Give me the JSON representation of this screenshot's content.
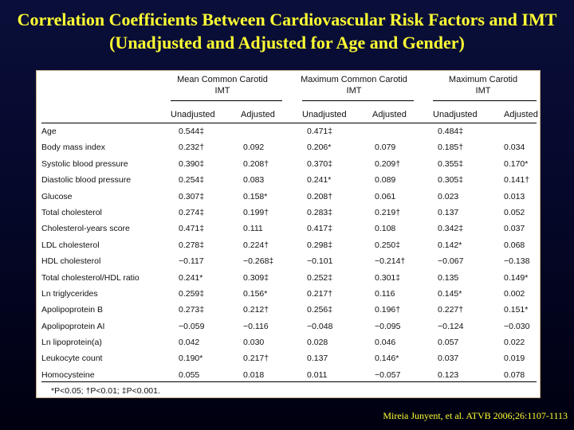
{
  "title": "Correlation Coefficients Between Cardiovascular Risk Factors and IMT (Unadjusted and Adjusted for Age and Gender)",
  "table": {
    "groups": [
      "Mean Common Carotid\nIMT",
      "Maximum Common Carotid\nIMT",
      "Maximum Carotid\nIMT"
    ],
    "subheads": [
      "Unadjusted",
      "Adjusted",
      "Unadjusted",
      "Adjusted",
      "Unadjusted",
      "Adjusted"
    ],
    "rows": [
      {
        "label": "Age",
        "values": [
          "0.544‡",
          "",
          "0.471‡",
          "",
          "0.484‡",
          ""
        ]
      },
      {
        "label": "Body mass index",
        "values": [
          "0.232†",
          "0.092",
          "0.206*",
          "0.079",
          "0.185†",
          "0.034"
        ]
      },
      {
        "label": "Systolic blood pressure",
        "values": [
          "0.390‡",
          "0.208†",
          "0.370‡",
          "0.209†",
          "0.355‡",
          "0.170*"
        ]
      },
      {
        "label": "Diastolic blood pressure",
        "values": [
          "0.254‡",
          "0.083",
          "0.241*",
          "0.089",
          "0.305‡",
          "0.141†"
        ]
      },
      {
        "label": "Glucose",
        "values": [
          "0.307‡",
          "0.158*",
          "0.208†",
          "0.061",
          "0.023",
          "0.013"
        ]
      },
      {
        "label": "Total cholesterol",
        "values": [
          "0.274‡",
          "0.199†",
          "0.283‡",
          "0.219†",
          "0.137",
          "0.052"
        ]
      },
      {
        "label": "Cholesterol-years score",
        "values": [
          "0.471‡",
          "0.111",
          "0.417‡",
          "0.108",
          "0.342‡",
          "0.037"
        ]
      },
      {
        "label": "LDL cholesterol",
        "values": [
          "0.278‡",
          "0.224†",
          "0.298‡",
          "0.250‡",
          "0.142*",
          "0.068"
        ]
      },
      {
        "label": "HDL cholesterol",
        "values": [
          "−0.117",
          "−0.268‡",
          "−0.101",
          "−0.214†",
          "−0.067",
          "−0.138"
        ]
      },
      {
        "label": "Total cholesterol/HDL ratio",
        "values": [
          "0.241*",
          "0.309‡",
          "0.252‡",
          "0.301‡",
          "0.135",
          "0.149*"
        ]
      },
      {
        "label": "Ln triglycerides",
        "values": [
          "0.259‡",
          "0.156*",
          "0.217†",
          "0.116",
          "0.145*",
          "0.002"
        ]
      },
      {
        "label": "Apolipoprotein B",
        "values": [
          "0.273‡",
          "0.212†",
          "0.256‡",
          "0.196†",
          "0.227†",
          "0.151*"
        ]
      },
      {
        "label": "Apolipoprotein AI",
        "values": [
          "−0.059",
          "−0.116",
          "−0.048",
          "−0.095",
          "−0.124",
          "−0.030"
        ]
      },
      {
        "label": "Ln lipoprotein(a)",
        "values": [
          "0.042",
          "0.030",
          "0.028",
          "0.046",
          "0.057",
          "0.022"
        ]
      },
      {
        "label": "Leukocyte count",
        "values": [
          "0.190*",
          "0.217†",
          "0.137",
          "0.146*",
          "0.037",
          "0.019"
        ]
      },
      {
        "label": "Homocysteine",
        "values": [
          "0.055",
          "0.018",
          "0.011",
          "−0.057",
          "0.123",
          "0.078"
        ]
      }
    ],
    "footnote": "*P<0.05; †P<0.01; ‡P<0.001."
  },
  "citation": "Mireia Junyent, et al.  ATVB 2006;26:1107-1113"
}
